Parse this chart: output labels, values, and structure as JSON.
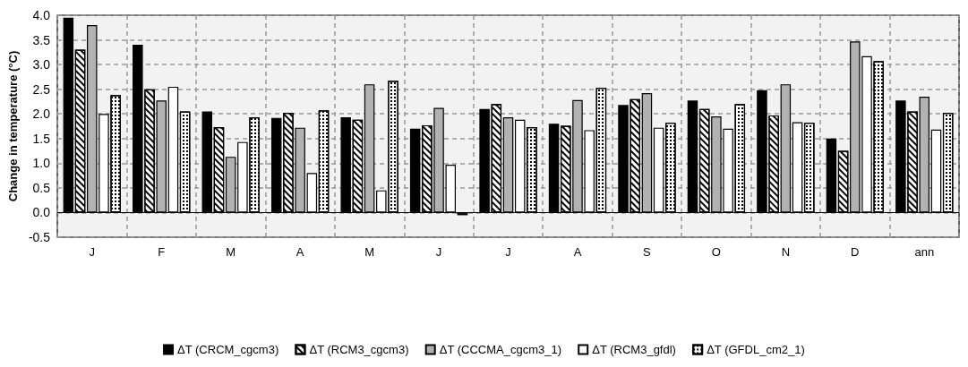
{
  "chart_data": {
    "type": "bar",
    "ylabel": "Change in temperature (°C)",
    "categories": [
      "J",
      "F",
      "M",
      "A",
      "M",
      "J",
      "J",
      "A",
      "S",
      "O",
      "N",
      "D",
      "ann"
    ],
    "series": [
      {
        "name": "ΔT (CRCM_cgcm3)",
        "color": "#000000",
        "values": [
          3.95,
          3.4,
          2.05,
          1.92,
          1.93,
          1.7,
          2.1,
          1.8,
          2.18,
          2.27,
          2.48,
          1.5,
          2.27
        ]
      },
      {
        "name": "ΔT (RCM3_cgcm3)",
        "color": "#ffffff",
        "values": [
          3.3,
          2.5,
          1.73,
          2.02,
          1.88,
          1.77,
          2.2,
          1.76,
          2.3,
          2.1,
          1.97,
          1.25,
          2.05
        ]
      },
      {
        "name": "ΔT (CCCMA_cgcm3_1)",
        "color": "#b2b2b2",
        "values": [
          3.8,
          2.27,
          1.13,
          1.72,
          2.6,
          2.12,
          1.93,
          2.28,
          2.42,
          1.95,
          2.6,
          3.47,
          2.35
        ]
      },
      {
        "name": "ΔT (RCM3_gfdl)",
        "color": "#ffffff",
        "values": [
          2.0,
          2.55,
          1.43,
          0.8,
          0.45,
          0.97,
          1.88,
          1.67,
          1.72,
          1.7,
          1.83,
          3.17,
          1.68
        ]
      },
      {
        "name": "ΔT (GFDL_cm2_1)",
        "color": "#ffffff",
        "values": [
          2.38,
          2.05,
          1.93,
          2.07,
          2.67,
          -0.05,
          1.73,
          2.53,
          1.82,
          2.2,
          1.82,
          3.07,
          2.02
        ]
      }
    ],
    "ylim": [
      -0.5,
      4.0
    ],
    "yticks": [
      {
        "value": -0.5,
        "label": "-0.5"
      },
      {
        "value": 0,
        "label": "0.0"
      },
      {
        "value": 0.5,
        "label": "0.5"
      },
      {
        "value": 1,
        "label": "1.0"
      },
      {
        "value": 1.5,
        "label": "1.5"
      },
      {
        "value": 2,
        "label": "2.0"
      },
      {
        "value": 2.5,
        "label": "2.5"
      },
      {
        "value": 3,
        "label": "3.0"
      },
      {
        "value": 3.5,
        "label": "3.5"
      },
      {
        "value": 4,
        "label": "4.0"
      }
    ],
    "ref_lines": [
      {
        "axis": "y",
        "value": 0,
        "label": null,
        "color": "#000000"
      }
    ],
    "grid": true,
    "legend": "bottom"
  }
}
